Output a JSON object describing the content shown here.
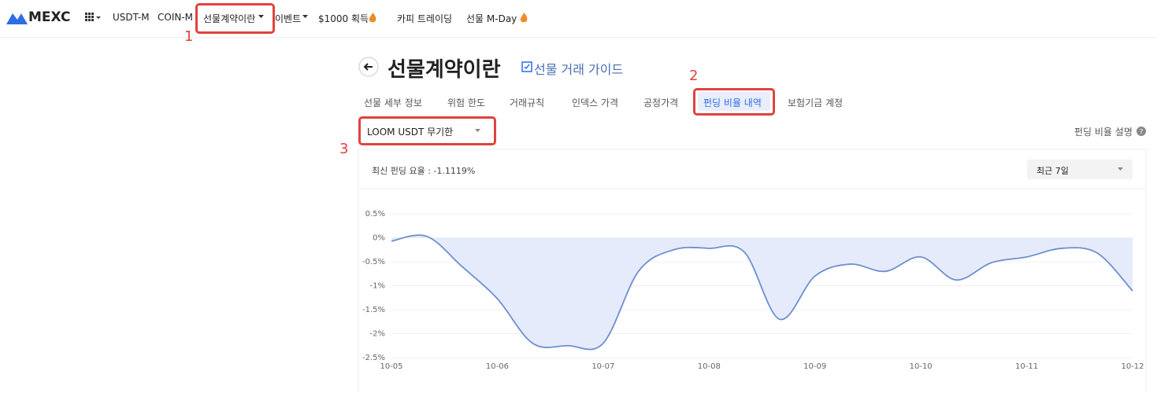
{
  "nav": {
    "logo": "MEXC",
    "items": [
      "USDT-M",
      "COIN-M",
      "선물계약이란",
      "이벤트",
      "$1000 획득",
      "카피 트레이딩",
      "선물 M-Day"
    ]
  },
  "annotations": [
    "1",
    "2",
    "3"
  ],
  "header": {
    "title": "선물계약이란",
    "guide": "선물 거래 가이드"
  },
  "tabs": [
    "선물 세부 정보",
    "위험 한도",
    "거래규칙",
    "인덱스 가격",
    "공정가격",
    "펀딩 비율 내역",
    "보험기금 계정"
  ],
  "selector": "LOOM USDT 무기한",
  "help": "펀딩 비율 설명",
  "latest": "최신 펀딩 요율 : -1.1119%",
  "period": "최근 7일",
  "chart_data": {
    "type": "area",
    "categories": [
      "10-05",
      null,
      null,
      "10-06",
      null,
      null,
      "10-07",
      null,
      null,
      "10-08",
      null,
      null,
      "10-09",
      null,
      null,
      "10-10",
      null,
      null,
      "10-11",
      null,
      null,
      "10-12"
    ],
    "values": [
      -0.07,
      0.03,
      -0.6,
      -1.27,
      -2.2,
      -2.25,
      -2.2,
      -0.7,
      -0.25,
      -0.22,
      -0.3,
      -1.7,
      -0.8,
      -0.55,
      -0.7,
      -0.4,
      -0.88,
      -0.52,
      -0.4,
      -0.22,
      -0.32,
      -1.11
    ],
    "color": "#6d8fd0",
    "fill": "#e6ebfb",
    "ylim": [
      -2.5,
      0.5
    ],
    "yticks": [
      {
        "value": 0.5,
        "label": "0.5%"
      },
      {
        "value": 0,
        "label": "0%"
      },
      {
        "value": -0.5,
        "label": "-0.5%"
      },
      {
        "value": -1,
        "label": "-1%"
      },
      {
        "value": -1.5,
        "label": "-1.5%"
      },
      {
        "value": -2,
        "label": "-2%"
      },
      {
        "value": -2.5,
        "label": "-2.5%"
      }
    ],
    "grid": true
  }
}
